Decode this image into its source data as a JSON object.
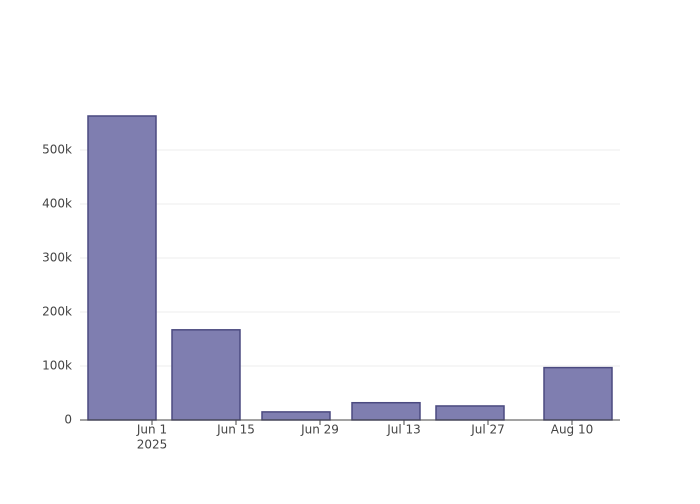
{
  "chart_data": {
    "type": "bar",
    "x": [
      "2025-05-27",
      "2025-06-10",
      "2025-06-25",
      "2025-07-10",
      "2025-07-24",
      "2025-08-11"
    ],
    "values": [
      563000,
      167000,
      15000,
      32000,
      26000,
      97000
    ],
    "color": "#7f7eb0",
    "line_color": "#4b4a80",
    "xlim": [
      "2025-05-20",
      "2025-08-18"
    ],
    "xticks": [
      {
        "value": "2025-06-01",
        "label": "Jun 1",
        "sublabel": "2025"
      },
      {
        "value": "2025-06-15",
        "label": "Jun 15"
      },
      {
        "value": "2025-06-29",
        "label": "Jun 29"
      },
      {
        "value": "2025-07-13",
        "label": "Jul 13"
      },
      {
        "value": "2025-07-27",
        "label": "Jul 27"
      },
      {
        "value": "2025-08-10",
        "label": "Aug 10"
      }
    ],
    "ylim": [
      0,
      592600
    ],
    "yticks": [
      0,
      {
        "value": 100000,
        "label": "100k"
      },
      {
        "value": 200000,
        "label": "200k"
      },
      {
        "value": 300000,
        "label": "300k"
      },
      {
        "value": 400000,
        "label": "400k"
      },
      {
        "value": 500000,
        "label": "500k"
      }
    ],
    "grid": true
  }
}
